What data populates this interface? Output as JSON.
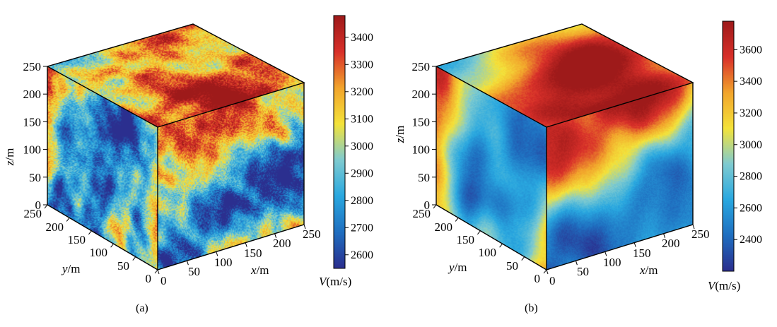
{
  "figure": {
    "panels": [
      {
        "id": "a",
        "caption": "(a)",
        "z_axis": {
          "label_var": "z",
          "label_unit": "/m",
          "ticks": [
            "0",
            "50",
            "100",
            "150",
            "200",
            "250"
          ]
        },
        "y_axis": {
          "label_var": "y",
          "label_unit": "/m",
          "ticks": [
            "0",
            "50",
            "100",
            "150",
            "200",
            "250"
          ]
        },
        "x_axis": {
          "label_var": "x",
          "label_unit": "/m",
          "ticks": [
            "0",
            "50",
            "100",
            "150",
            "200",
            "250"
          ]
        },
        "colorbar": {
          "label_var": "V",
          "label_unit": "(m/s)",
          "ticks": [
            "2600",
            "2700",
            "2800",
            "2900",
            "3000",
            "3100",
            "3200",
            "3300",
            "3400"
          ]
        }
      },
      {
        "id": "b",
        "caption": "(b)",
        "z_axis": {
          "label_var": "z",
          "label_unit": "/m",
          "ticks": [
            "0",
            "50",
            "100",
            "150",
            "200",
            "250"
          ]
        },
        "y_axis": {
          "label_var": "y",
          "label_unit": "/m",
          "ticks": [
            "0",
            "50",
            "100",
            "150",
            "200",
            "250"
          ]
        },
        "x_axis": {
          "label_var": "x",
          "label_unit": "/m",
          "ticks": [
            "0",
            "50",
            "100",
            "150",
            "200",
            "250"
          ]
        },
        "colorbar": {
          "label_var": "V",
          "label_unit": "(m/s)",
          "ticks": [
            "2400",
            "2600",
            "2800",
            "3000",
            "3200",
            "3400",
            "3600"
          ]
        }
      }
    ]
  },
  "chart_data": [
    {
      "type": "heatmap",
      "title": "",
      "plot": "3d-volume-slice",
      "xlabel": "x/m",
      "ylabel": "y/m",
      "zlabel": "z/m",
      "xlim": [
        0,
        250
      ],
      "ylim": [
        0,
        250
      ],
      "zlim": [
        0,
        250
      ],
      "colorbar_label": "V(m/s)",
      "color_range": [
        2550,
        3480
      ],
      "colorbar_ticks": [
        2600,
        2700,
        2800,
        2900,
        3000,
        3100,
        3200,
        3300,
        3400
      ],
      "colormap": [
        "#2b2f8f",
        "#1f6fc0",
        "#29a8e0",
        "#7fcbd0",
        "#f4e33a",
        "#f2a52c",
        "#d9302a",
        "#9e1a1a"
      ],
      "field_scale": "fine"
    },
    {
      "type": "heatmap",
      "title": "",
      "plot": "3d-volume-slice",
      "xlabel": "x/m",
      "ylabel": "y/m",
      "zlabel": "z/m",
      "xlim": [
        0,
        250
      ],
      "ylim": [
        0,
        250
      ],
      "zlim": [
        0,
        250
      ],
      "colorbar_label": "V(m/s)",
      "color_range": [
        2200,
        3780
      ],
      "colorbar_ticks": [
        2400,
        2600,
        2800,
        3000,
        3200,
        3400,
        3600
      ],
      "colormap": [
        "#2b2f8f",
        "#1f6fc0",
        "#29a8e0",
        "#7fcbd0",
        "#f4e33a",
        "#f2a52c",
        "#d9302a",
        "#9e1a1a"
      ],
      "field_scale": "smooth"
    }
  ]
}
